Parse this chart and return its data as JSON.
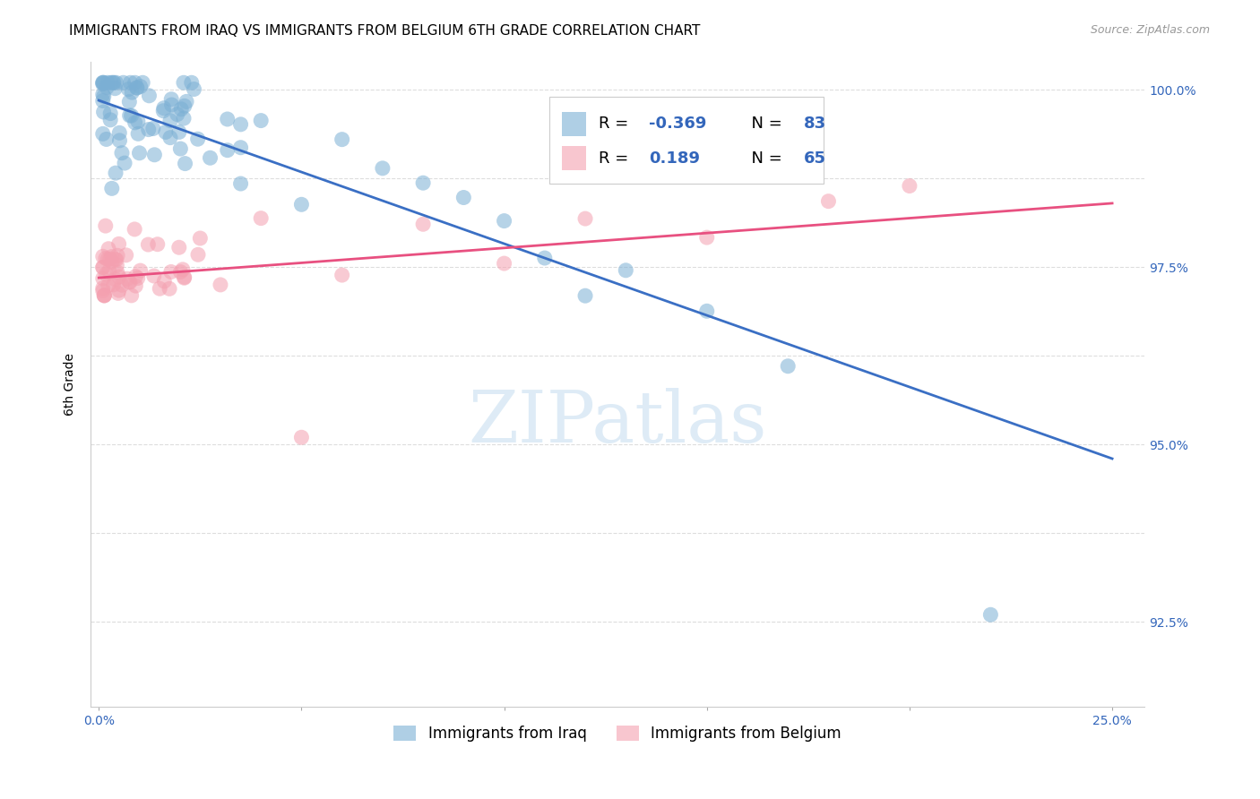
{
  "title": "IMMIGRANTS FROM IRAQ VS IMMIGRANTS FROM BELGIUM 6TH GRADE CORRELATION CHART",
  "source": "Source: ZipAtlas.com",
  "ylabel": "6th Grade",
  "watermark": "ZIPatlas",
  "xlim": [
    -0.002,
    0.258
  ],
  "ylim": [
    0.913,
    1.004
  ],
  "ytick_positions": [
    0.925,
    0.9375,
    0.95,
    0.9625,
    0.975,
    0.9875,
    1.0
  ],
  "ytick_labels": [
    "92.5%",
    "",
    "95.0%",
    "",
    "97.5%",
    "",
    "100.0%"
  ],
  "xtick_positions": [
    0.0,
    0.05,
    0.1,
    0.15,
    0.2,
    0.25
  ],
  "xtick_labels": [
    "0.0%",
    "",
    "",
    "",
    "",
    "25.0%"
  ],
  "iraq_R": -0.369,
  "iraq_N": 83,
  "belgium_R": 0.189,
  "belgium_N": 65,
  "iraq_color": "#7BAFD4",
  "belgium_color": "#F4A0B0",
  "trend_iraq_color": "#3A6FC4",
  "trend_belgium_color": "#E85080",
  "iraq_trend_x0": 0.0,
  "iraq_trend_y0": 0.9985,
  "iraq_trend_x1": 0.25,
  "iraq_trend_y1": 0.948,
  "belgium_trend_x0": 0.0,
  "belgium_trend_y0": 0.9735,
  "belgium_trend_x1": 0.25,
  "belgium_trend_y1": 0.984,
  "title_fontsize": 11,
  "axis_label_fontsize": 10,
  "tick_fontsize": 10,
  "background_color": "#ffffff",
  "grid_color": "#dddddd"
}
